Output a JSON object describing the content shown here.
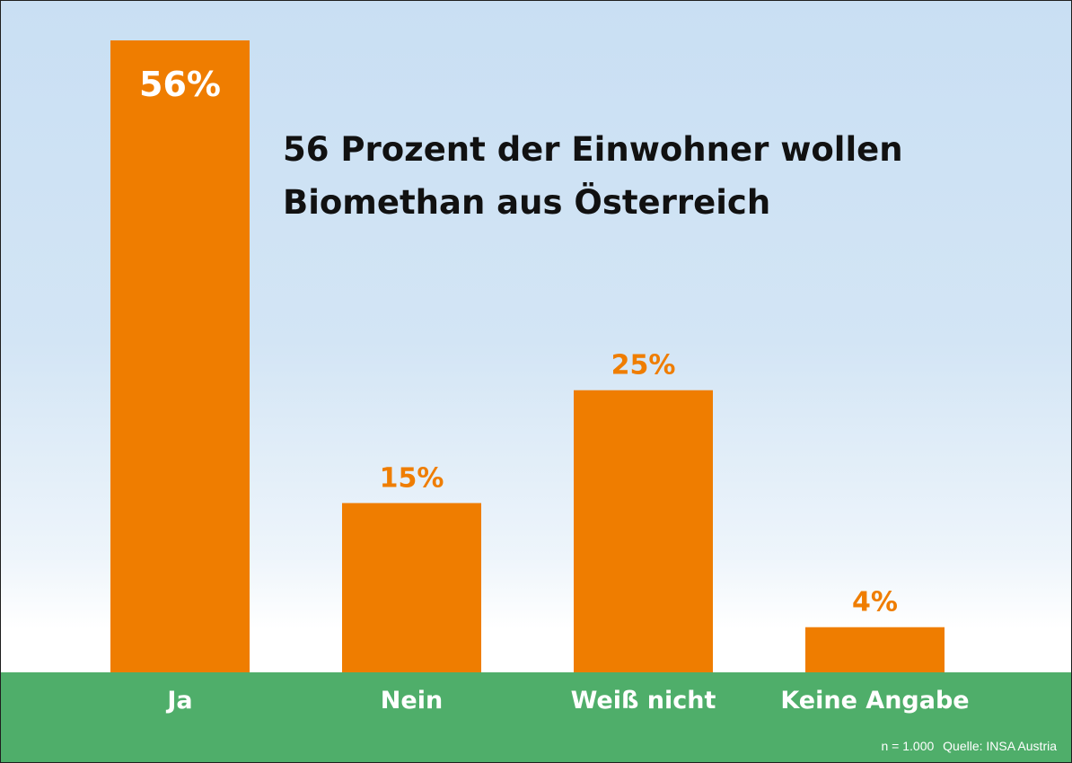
{
  "chart_data": {
    "type": "bar",
    "title_lines": [
      "56 Prozent der Einwohner wollen",
      "Biomethan aus Österreich"
    ],
    "categories": [
      "Ja",
      "Nein",
      "Weiß nicht",
      "Keine Angabe"
    ],
    "values": [
      56,
      15,
      25,
      4
    ],
    "data_labels": [
      "56%",
      "15%",
      "25%",
      "4%"
    ],
    "ylim": [
      0,
      56
    ],
    "grid": false,
    "legend": "none"
  },
  "colors": {
    "bar": "#ef7d00",
    "label_on_bar": "#ffffff",
    "label_above_bar": "#ef7d00",
    "axis_band": "#4fae6a",
    "category_text": "#ffffff",
    "background_top": "#c9dff3",
    "background_bottom": "#ffffff"
  },
  "footnote": {
    "sample": "n = 1.000",
    "source": "Quelle: INSA Austria"
  }
}
